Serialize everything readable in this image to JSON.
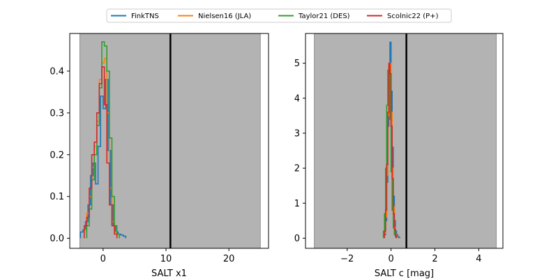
{
  "legend": {
    "placement": "top-center",
    "entries": [
      {
        "label": "FinkTNS",
        "color": "#1f77b4"
      },
      {
        "label": "Nielsen16 (JLA)",
        "color": "#ff7f0e"
      },
      {
        "label": "Taylor21 (DES)",
        "color": "#2ca02c"
      },
      {
        "label": "Scolnic22 (P+)",
        "color": "#d62728"
      }
    ]
  },
  "chart_data": [
    {
      "type": "histogram-step",
      "xlabel": "SALT x1",
      "ylabel": "",
      "xlim": [
        -5.3,
        26.3
      ],
      "ylim": [
        -0.024,
        0.49
      ],
      "xticks": [
        0,
        10,
        20
      ],
      "yticks": [
        0.0,
        0.1,
        0.2,
        0.3,
        0.4
      ],
      "ytick_decimals": 1,
      "shaded_region": [
        -3.7,
        25.0
      ],
      "vline": 10.7,
      "series": [
        {
          "name": "FinkTNS",
          "color": "#1f77b4",
          "edges": [
            -3.6,
            -3.2,
            -2.8,
            -2.4,
            -2.0,
            -1.6,
            -1.2,
            -0.8,
            -0.4,
            0.0,
            0.4,
            0.8,
            1.2,
            1.6,
            2.0,
            2.4,
            2.8,
            3.2,
            3.6
          ],
          "values": [
            0.015,
            0.02,
            0.04,
            0.08,
            0.15,
            0.18,
            0.13,
            0.22,
            0.34,
            0.31,
            0.38,
            0.21,
            0.08,
            0.03,
            0.015,
            0.01,
            0.008,
            0.005
          ]
        },
        {
          "name": "Nielsen16 (JLA)",
          "color": "#ff7f0e",
          "edges": [
            -3.0,
            -2.6,
            -2.2,
            -1.8,
            -1.4,
            -1.0,
            -0.6,
            -0.2,
            0.2,
            0.6,
            1.0,
            1.4,
            1.8,
            2.2,
            2.6
          ],
          "values": [
            0.02,
            0.06,
            0.1,
            0.17,
            0.22,
            0.28,
            0.38,
            0.42,
            0.43,
            0.3,
            0.12,
            0.04,
            0.015,
            0.01
          ]
        },
        {
          "name": "Taylor21 (DES)",
          "color": "#2ca02c",
          "edges": [
            -2.6,
            -2.2,
            -1.8,
            -1.4,
            -1.0,
            -0.6,
            -0.2,
            0.2,
            0.6,
            1.0,
            1.4,
            1.8,
            2.2,
            2.6
          ],
          "values": [
            0.03,
            0.07,
            0.14,
            0.2,
            0.27,
            0.36,
            0.47,
            0.46,
            0.4,
            0.24,
            0.1,
            0.03,
            0.01
          ]
        },
        {
          "name": "Scolnic22 (P+)",
          "color": "#d62728",
          "edges": [
            -3.0,
            -2.6,
            -2.2,
            -1.8,
            -1.4,
            -1.0,
            -0.6,
            -0.2,
            0.2,
            0.6,
            1.0,
            1.4,
            1.8,
            2.2
          ],
          "values": [
            0.03,
            0.05,
            0.12,
            0.2,
            0.23,
            0.3,
            0.37,
            0.41,
            0.32,
            0.18,
            0.08,
            0.03,
            0.01
          ]
        }
      ]
    },
    {
      "type": "histogram-step",
      "xlabel": "SALT c [mag]",
      "ylabel": "",
      "xlim": [
        -3.9,
        5.1
      ],
      "ylim": [
        -0.29,
        5.85
      ],
      "xticks": [
        -2,
        0,
        2,
        4
      ],
      "yticks": [
        0,
        1,
        2,
        3,
        4,
        5
      ],
      "ytick_decimals": 0,
      "shaded_region": [
        -3.5,
        4.8
      ],
      "vline": 0.7,
      "series": [
        {
          "name": "FinkTNS",
          "color": "#1f77b4",
          "edges": [
            -0.3,
            -0.25,
            -0.2,
            -0.15,
            -0.1,
            -0.05,
            0.0,
            0.05,
            0.1,
            0.15,
            0.2,
            0.25,
            0.3,
            0.35,
            0.4
          ],
          "values": [
            0.1,
            0.5,
            1.6,
            3.2,
            4.8,
            5.6,
            4.2,
            2.6,
            1.2,
            0.5,
            0.2,
            0.1,
            0.05,
            0.02
          ]
        },
        {
          "name": "Nielsen16 (JLA)",
          "color": "#ff7f0e",
          "edges": [
            -0.3,
            -0.25,
            -0.2,
            -0.15,
            -0.1,
            -0.05,
            0.0,
            0.05,
            0.1,
            0.15,
            0.2,
            0.25,
            0.3
          ],
          "values": [
            0.15,
            0.6,
            1.8,
            3.5,
            4.9,
            5.0,
            3.6,
            2.0,
            0.9,
            0.3,
            0.1,
            0.04
          ]
        },
        {
          "name": "Taylor21 (DES)",
          "color": "#2ca02c",
          "edges": [
            -0.35,
            -0.3,
            -0.25,
            -0.2,
            -0.15,
            -0.1,
            -0.05,
            0.0,
            0.05,
            0.1,
            0.15,
            0.2,
            0.25
          ],
          "values": [
            0.2,
            0.7,
            2.0,
            3.8,
            4.8,
            4.9,
            3.4,
            1.9,
            0.8,
            0.3,
            0.1,
            0.03
          ]
        },
        {
          "name": "Scolnic22 (P+)",
          "color": "#d62728",
          "edges": [
            -0.3,
            -0.25,
            -0.2,
            -0.15,
            -0.1,
            -0.05,
            0.0,
            0.05,
            0.1,
            0.15,
            0.2,
            0.25
          ],
          "values": [
            0.2,
            0.8,
            2.1,
            3.6,
            5.0,
            4.7,
            3.2,
            1.7,
            0.7,
            0.25,
            0.08
          ]
        }
      ]
    }
  ]
}
